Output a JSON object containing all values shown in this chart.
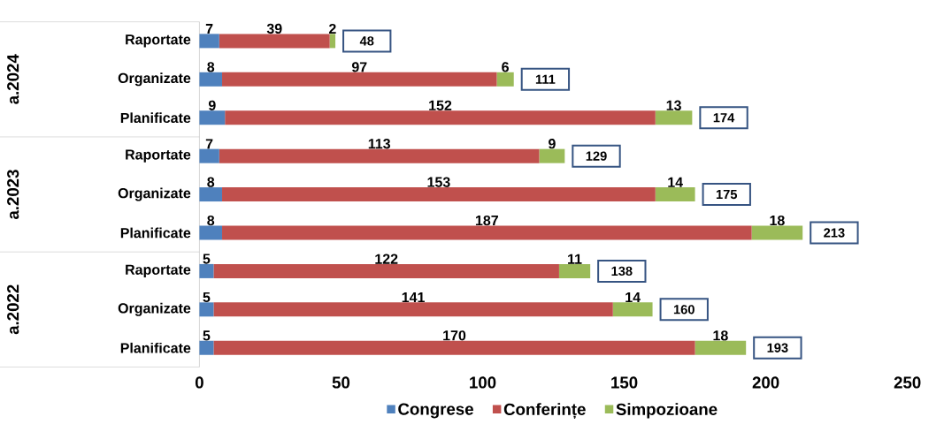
{
  "chart_data": {
    "type": "bar",
    "orientation": "horizontal",
    "stacked": true,
    "categories": [
      "Raportate",
      "Organizate",
      "Planificate",
      "Raportate",
      "Organizate",
      "Planificate",
      "Raportate",
      "Organizate",
      "Planificate"
    ],
    "series": [
      {
        "name": "Congrese",
        "color": "#4f81bd",
        "values": [
          7,
          8,
          9,
          7,
          8,
          8,
          5,
          5,
          5
        ]
      },
      {
        "name": "Conferințe",
        "color": "#c0504d",
        "values": [
          39,
          97,
          152,
          113,
          153,
          187,
          122,
          141,
          170
        ]
      },
      {
        "name": "Simpozioane",
        "color": "#9bbb59",
        "values": [
          2,
          6,
          13,
          9,
          14,
          18,
          11,
          14,
          18
        ]
      }
    ],
    "totals": [
      "48",
      "111",
      "174",
      "129",
      "175",
      "213",
      "138",
      "160",
      "193"
    ],
    "annotations": [
      "a.2024",
      "a.2023",
      "a.2022"
    ],
    "xlim": [
      0,
      250
    ],
    "xticks": [
      0,
      50,
      100,
      150,
      200,
      250
    ],
    "data_labels": true,
    "grid": false,
    "legend": "bottom"
  }
}
